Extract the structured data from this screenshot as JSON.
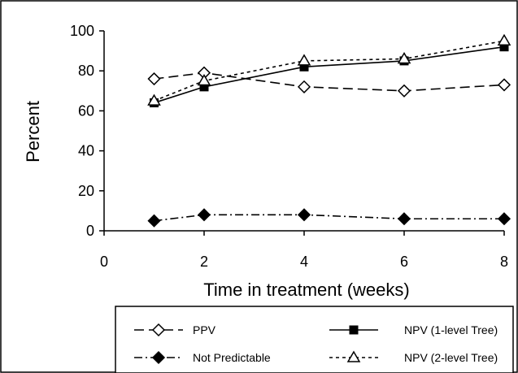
{
  "chart_data": {
    "type": "line",
    "title": "",
    "xlabel": "Time in treatment (weeks)",
    "ylabel": "Percent",
    "xlim": [
      0,
      8
    ],
    "ylim": [
      0,
      100
    ],
    "xticks": [
      "0",
      "2",
      "4",
      "6",
      "8"
    ],
    "yticks": [
      "0",
      "20",
      "40",
      "60",
      "80",
      "100"
    ],
    "grid": false,
    "legend_position": "bottom",
    "series": [
      {
        "name": "PPV",
        "x": [
          1,
          2,
          4,
          6,
          8
        ],
        "y": [
          76,
          79,
          72,
          70,
          73
        ],
        "style": "dashed",
        "marker": "open-diamond",
        "color": "#000000"
      },
      {
        "name": "NPV (1-level Tree)",
        "x": [
          1,
          2,
          4,
          6,
          8
        ],
        "y": [
          64,
          72,
          82,
          85,
          92
        ],
        "style": "solid",
        "marker": "filled-square",
        "color": "#000000"
      },
      {
        "name": "Not Predictable",
        "x": [
          1,
          2,
          4,
          6,
          8
        ],
        "y": [
          5,
          8,
          8,
          6,
          6
        ],
        "style": "dash-dot",
        "marker": "filled-diamond",
        "color": "#000000"
      },
      {
        "name": "NPV (2-level Tree)",
        "x": [
          1,
          2,
          4,
          6,
          8
        ],
        "y": [
          65,
          75,
          85,
          86,
          95
        ],
        "style": "dotted",
        "marker": "open-triangle",
        "color": "#000000"
      }
    ]
  }
}
